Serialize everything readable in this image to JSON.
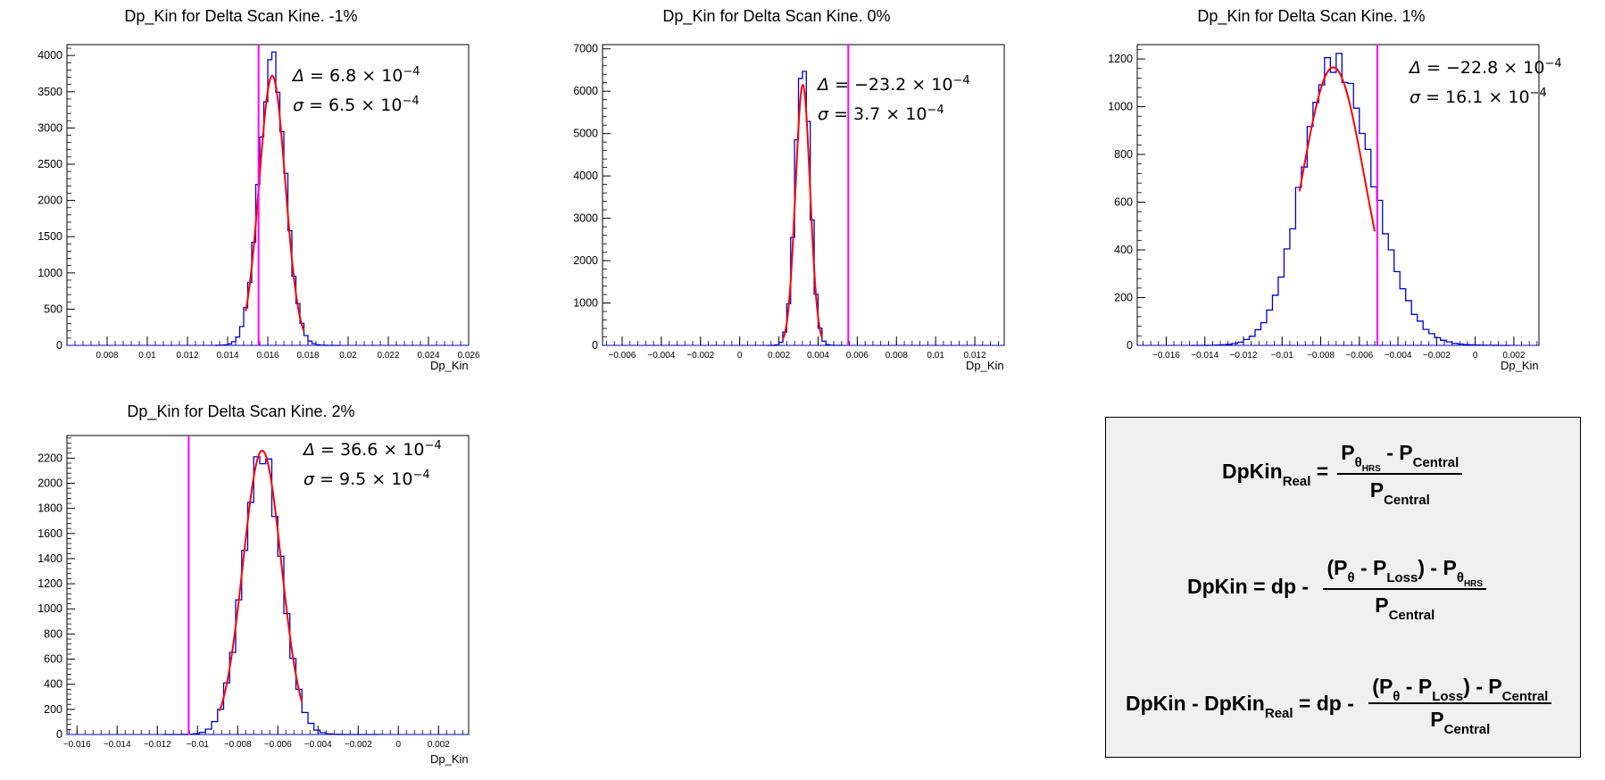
{
  "chart_data": [
    {
      "type": "histogram",
      "title": "Dp_Kin for Delta Scan Kine. -1%",
      "xlabel": "Dp_Kin",
      "xlim": [
        0.006,
        0.026
      ],
      "ylim": [
        0,
        4150
      ],
      "xticks": [
        0.008,
        0.01,
        0.012,
        0.014,
        0.016,
        0.018,
        0.02,
        0.022,
        0.024,
        0.026
      ],
      "yticks": [
        0,
        500,
        1000,
        1500,
        2000,
        2500,
        3000,
        3500,
        4000
      ],
      "histogram": {
        "mean": 0.01622,
        "sigma": 0.00065,
        "bin_width": 0.0002,
        "peak": 3950,
        "range": [
          0.0135,
          0.0195
        ]
      },
      "fit": {
        "type": "gaussian",
        "mean": 0.01622,
        "sigma": 0.00065,
        "amplitude": 3720,
        "range": [
          0.0149,
          0.0178
        ]
      },
      "reference_line": 0.01554,
      "annotations": {
        "delta": {
          "symbol": "Δ",
          "value": "6.8",
          "exp": "−4"
        },
        "sigma": {
          "symbol": "σ",
          "value": "6.5",
          "exp": "−4"
        }
      }
    },
    {
      "type": "histogram",
      "title": "Dp_Kin for Delta Scan Kine. 0%",
      "xlabel": "Dp_Kin",
      "xlim": [
        -0.007,
        0.0135
      ],
      "ylim": [
        0,
        7100
      ],
      "xticks": [
        -0.006,
        -0.004,
        -0.002,
        0,
        0.002,
        0.004,
        0.006,
        0.008,
        0.01,
        0.012
      ],
      "yticks": [
        0,
        1000,
        2000,
        3000,
        4000,
        5000,
        6000,
        7000
      ],
      "histogram": {
        "mean": 0.00322,
        "sigma": 0.00037,
        "bin_width": 0.0002,
        "peak": 6800,
        "range": [
          0.0015,
          0.005
        ]
      },
      "fit": {
        "type": "gaussian",
        "mean": 0.00322,
        "sigma": 0.00037,
        "amplitude": 6150,
        "range": [
          0.0022,
          0.0042
        ]
      },
      "reference_line": 0.00554,
      "annotations": {
        "delta": {
          "symbol": "Δ",
          "value": "−23.2",
          "exp": "−4"
        },
        "sigma": {
          "symbol": "σ",
          "value": "3.7",
          "exp": "−4"
        }
      }
    },
    {
      "type": "histogram",
      "title": "Dp_Kin for Delta Scan Kine. 1%",
      "xlabel": "Dp_Kin",
      "xlim": [
        -0.0175,
        0.0033
      ],
      "ylim": [
        0,
        1260
      ],
      "xticks": [
        -0.016,
        -0.014,
        -0.012,
        -0.01,
        -0.008,
        -0.006,
        -0.004,
        -0.002,
        0,
        0.002
      ],
      "yticks": [
        0,
        200,
        400,
        600,
        800,
        1000,
        1200
      ],
      "histogram": {
        "mean": -0.00735,
        "sigma": 0.00161,
        "bin_width": 0.0003,
        "peak": 1190,
        "range": [
          -0.0145,
          0.0015
        ],
        "tail_right": true
      },
      "fit": {
        "type": "gaussian",
        "mean": -0.00735,
        "sigma": 0.00161,
        "amplitude": 1165,
        "range": [
          -0.0091,
          -0.0052
        ]
      },
      "reference_line": -0.00507,
      "annotations": {
        "delta": {
          "symbol": "Δ",
          "value": "−22.8",
          "exp": "−4"
        },
        "sigma": {
          "symbol": "σ",
          "value": "16.1",
          "exp": "−4"
        }
      }
    },
    {
      "type": "histogram",
      "title": "Dp_Kin for Delta Scan Kine. 2%",
      "xlabel": "Dp_Kin",
      "xlim": [
        -0.0165,
        0.0035
      ],
      "ylim": [
        0,
        2380
      ],
      "xticks": [
        -0.016,
        -0.014,
        -0.012,
        -0.01,
        -0.008,
        -0.006,
        -0.004,
        -0.002,
        0,
        0.002
      ],
      "yticks": [
        0,
        200,
        400,
        600,
        800,
        1000,
        1200,
        1400,
        1600,
        1800,
        2000,
        2200
      ],
      "histogram": {
        "mean": -0.00678,
        "sigma": 0.00095,
        "bin_width": 0.0003,
        "peak": 2240,
        "range": [
          -0.0115,
          -0.001
        ]
      },
      "fit": {
        "type": "gaussian",
        "mean": -0.00678,
        "sigma": 0.00095,
        "amplitude": 2260,
        "range": [
          -0.0089,
          -0.0048
        ]
      },
      "reference_line": -0.01044,
      "annotations": {
        "delta": {
          "symbol": "Δ",
          "value": "36.6",
          "exp": "−4"
        },
        "sigma": {
          "symbol": "σ",
          "value": "9.5",
          "exp": "−4"
        }
      }
    }
  ],
  "colors": {
    "histogram": "#0000cc",
    "fit": "#ff0000",
    "reference_line": "#ff00ff",
    "formula_bg": "#f0f0f0"
  },
  "formulas": {
    "eq1": {
      "lhs": "DpKin",
      "lhs_sub": "Real",
      "num_p": "P",
      "num_sub": "θ",
      "num_subsub": "HRS",
      "num_rest": " - P",
      "num_rest_sub": "Central",
      "den": "P",
      "den_sub": "Central"
    },
    "eq2": {
      "lhs": "DpKin = dp - ",
      "num_open": "(P",
      "num_sub1": "θ",
      "num_mid": " - P",
      "num_sub2": "Loss",
      "num_close": ") - P",
      "num_sub3": "θ",
      "num_subsub3": "HRS",
      "den": "P",
      "den_sub": "Central"
    },
    "eq3": {
      "lhs_a": "DpKin - DpKin",
      "lhs_sub": "Real",
      "lhs_b": " = dp - ",
      "num_open": "(P",
      "num_sub1": "θ",
      "num_mid": " - P",
      "num_sub2": "Loss",
      "num_close": ") - P",
      "num_sub3": "Central",
      "den": "P",
      "den_sub": "Central"
    }
  }
}
